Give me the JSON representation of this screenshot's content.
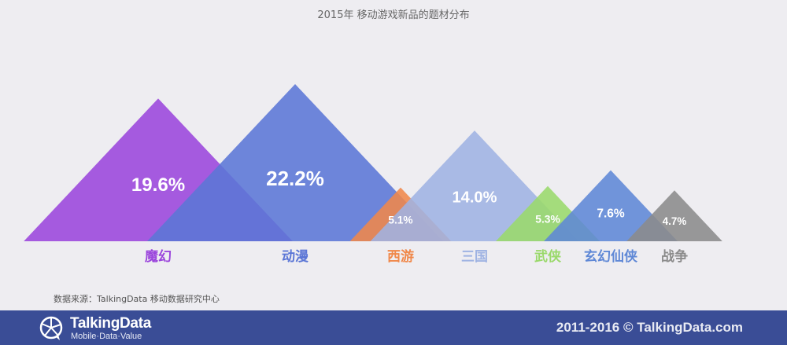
{
  "chart_data": {
    "type": "triangle-area",
    "title": "2015年 移动游戏新品的题材分布",
    "categories": [
      "魔幻",
      "动漫",
      "西游",
      "三国",
      "武侠",
      "玄幻仙侠",
      "战争"
    ],
    "values": [
      19.6,
      22.2,
      5.1,
      14.0,
      5.3,
      7.6,
      4.7
    ],
    "labels": [
      "19.6%",
      "22.2%",
      "5.1%",
      "14.0%",
      "5.3%",
      "7.6%",
      "4.7%"
    ],
    "colors": [
      "#9b45dc",
      "#5b76d6",
      "#f0884a",
      "#9fb3e3",
      "#9ad96b",
      "#5f88d6",
      "#8b8b8b"
    ],
    "legend": "none",
    "grid": false
  },
  "source": "数据来源：TalkingData   移动数据研究中心",
  "footer": {
    "logo_name": "TalkingData",
    "logo_tagline": "Mobile·Data·Value",
    "logo_icon": "talkingdata-logo-icon",
    "copyright": "2011-2016 © TalkingData.com"
  }
}
